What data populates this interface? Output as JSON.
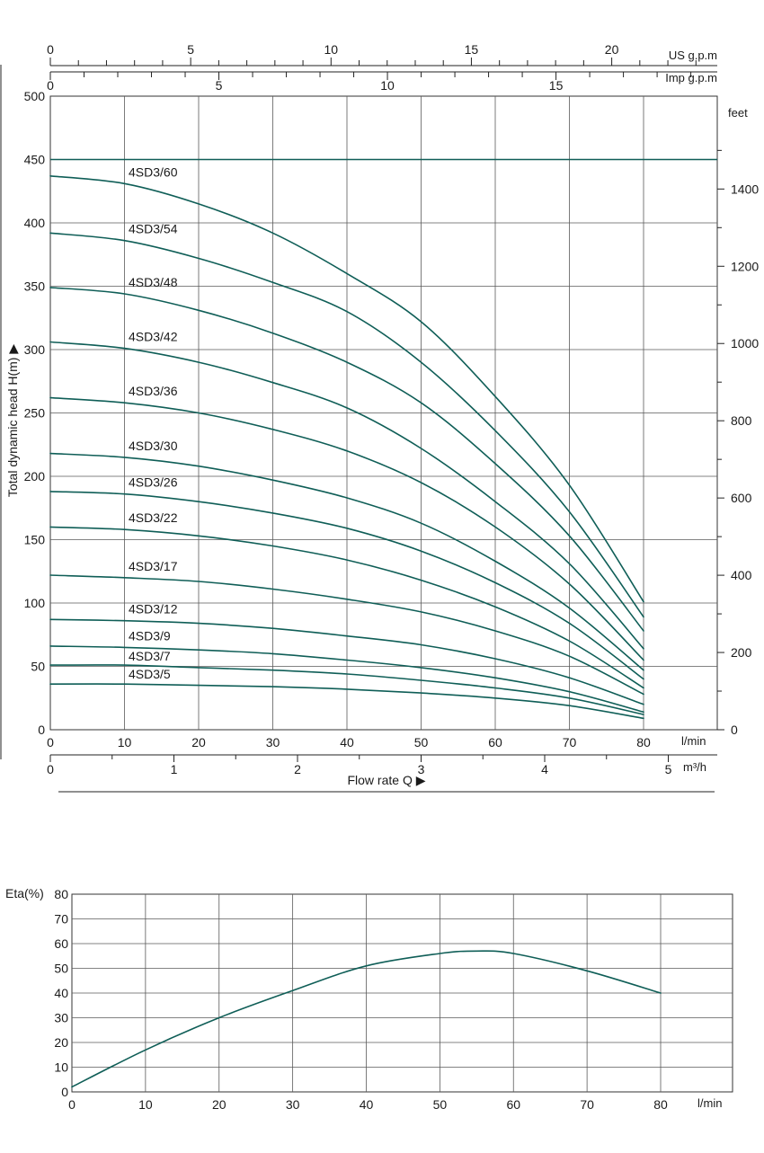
{
  "colors": {
    "curve": "#0f5e57",
    "grid": "#5a5a5a",
    "text": "#1a1a1a"
  },
  "chart_data": [
    {
      "type": "line",
      "title": "",
      "ylabel": "Total dynamic head H(m)",
      "xlabel": "Flow rate Q",
      "x_unit": "l/min",
      "ylim": [
        0,
        500
      ],
      "xlim": [
        0,
        80
      ],
      "grid": true,
      "y_ticks": [
        0,
        50,
        100,
        150,
        200,
        250,
        300,
        350,
        400,
        450,
        500
      ],
      "x_ticks": [
        0,
        10,
        20,
        30,
        40,
        50,
        60,
        70,
        80
      ],
      "secondary_axes": {
        "us_gpm": {
          "label": "US g.p.m",
          "ticks": [
            0,
            5,
            10,
            15,
            20
          ]
        },
        "imp_gpm": {
          "label": "Imp g.p.m",
          "ticks": [
            0,
            5,
            10,
            15
          ]
        },
        "feet": {
          "label": "feet",
          "ticks": [
            0,
            200,
            400,
            600,
            800,
            1000,
            1200,
            1400
          ]
        },
        "m3h": {
          "label": "m³/h",
          "ticks": [
            0,
            1,
            2,
            3,
            4,
            5
          ]
        }
      },
      "reference_line": {
        "y": 450
      },
      "x": [
        0,
        10,
        20,
        30,
        40,
        50,
        60,
        70,
        80
      ],
      "series": [
        {
          "name": "4SD3/60",
          "values": [
            437,
            431,
            415,
            392,
            360,
            322,
            263,
            193,
            101
          ]
        },
        {
          "name": "4SD3/54",
          "values": [
            392,
            386,
            372,
            353,
            330,
            290,
            236,
            172,
            89
          ]
        },
        {
          "name": "4SD3/48",
          "values": [
            349,
            344,
            331,
            313,
            290,
            258,
            210,
            153,
            78
          ]
        },
        {
          "name": "4SD3/42",
          "values": [
            306,
            301,
            290,
            274,
            254,
            222,
            180,
            131,
            64
          ]
        },
        {
          "name": "4SD3/36",
          "values": [
            262,
            258,
            250,
            237,
            220,
            195,
            160,
            115,
            55
          ]
        },
        {
          "name": "4SD3/30",
          "values": [
            218,
            215,
            208,
            197,
            183,
            163,
            133,
            96,
            47
          ]
        },
        {
          "name": "4SD3/26",
          "values": [
            188,
            186,
            180,
            171,
            159,
            141,
            116,
            84,
            40
          ]
        },
        {
          "name": "4SD3/22",
          "values": [
            160,
            158,
            153,
            145,
            134,
            118,
            97,
            70,
            33
          ]
        },
        {
          "name": "4SD3/17",
          "values": [
            122,
            120,
            117,
            111,
            103,
            93,
            78,
            58,
            28
          ]
        },
        {
          "name": "4SD3/12",
          "values": [
            87,
            86,
            84,
            80,
            74,
            67,
            56,
            41,
            20
          ]
        },
        {
          "name": "4SD3/9",
          "values": [
            66,
            65,
            63,
            60,
            55,
            49,
            41,
            30,
            14
          ]
        },
        {
          "name": "4SD3/7",
          "values": [
            51,
            51,
            49,
            47,
            44,
            39,
            33,
            25,
            12
          ]
        },
        {
          "name": "4SD3/5",
          "values": [
            36,
            36,
            35,
            34,
            32,
            29,
            25,
            19,
            9
          ]
        }
      ]
    },
    {
      "type": "line",
      "title": "",
      "ylabel": "Eta(%)",
      "xlabel": "",
      "x_unit": "l/min",
      "ylim": [
        0,
        80
      ],
      "xlim": [
        0,
        80
      ],
      "grid": true,
      "y_ticks": [
        0,
        10,
        20,
        30,
        40,
        50,
        60,
        70,
        80
      ],
      "x_ticks": [
        0,
        10,
        20,
        30,
        40,
        50,
        60,
        70,
        80
      ],
      "x": [
        0,
        10,
        20,
        30,
        40,
        50,
        55,
        60,
        70,
        80
      ],
      "series": [
        {
          "name": "",
          "values": [
            2,
            17,
            30,
            41,
            51,
            56,
            57,
            56,
            49,
            40
          ]
        }
      ]
    }
  ]
}
